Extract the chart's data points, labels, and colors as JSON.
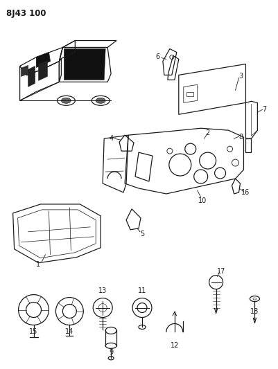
{
  "title": "8J43 100",
  "bg_color": "#ffffff",
  "fg_color": "#1a1a1a",
  "fig_width": 4.01,
  "fig_height": 5.33,
  "dpi": 100
}
